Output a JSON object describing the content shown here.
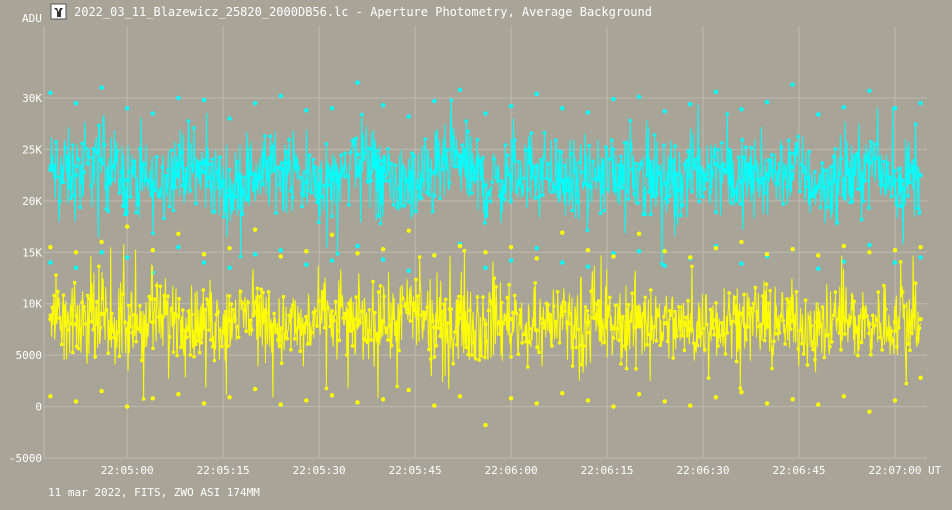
{
  "window": {
    "title": "2022_03_11_Blazewicz_25820_2000DB56.lc - Aperture Photometry, Average Background",
    "icon": "app-logo-icon"
  },
  "footer": {
    "text": "11 mar 2022, FITS, ZWO ASI 174MM"
  },
  "colors": {
    "background": "#a8a497",
    "grid": "#bdbab0",
    "text": "#ffffff",
    "series_cyan": "#00ffff",
    "series_yellow": "#ffff00"
  },
  "chart_data": {
    "type": "line",
    "title": "2022_03_11_Blazewicz_25820_2000DB56.lc - Aperture Photometry, Average Background",
    "ylabel": "ADU",
    "xlabel": "UT",
    "ylim": [
      -5000,
      37000
    ],
    "xlim": [
      "22:04:47",
      "22:07:05"
    ],
    "y_ticks": [
      {
        "value": -5000,
        "label": "-5000"
      },
      {
        "value": 0,
        "label": "0"
      },
      {
        "value": 5000,
        "label": "5000"
      },
      {
        "value": 10000,
        "label": "10K"
      },
      {
        "value": 15000,
        "label": "15K"
      },
      {
        "value": 20000,
        "label": "20K"
      },
      {
        "value": 25000,
        "label": "25K"
      },
      {
        "value": 30000,
        "label": "30K"
      }
    ],
    "x_ticks": [
      {
        "value": "22:05:00",
        "label": "22:05:00"
      },
      {
        "value": "22:05:15",
        "label": "22:05:15"
      },
      {
        "value": "22:05:30",
        "label": "22:05:30"
      },
      {
        "value": "22:05:45",
        "label": "22:05:45"
      },
      {
        "value": "22:06:00",
        "label": "22:06:00"
      },
      {
        "value": "22:06:15",
        "label": "22:06:15"
      },
      {
        "value": "22:06:30",
        "label": "22:06:30"
      },
      {
        "value": "22:06:45",
        "label": "22:06:45"
      },
      {
        "value": "22:07:00",
        "label": "22:07:00"
      }
    ],
    "grid": true,
    "legend": "none",
    "series": [
      {
        "color": "#00ffff",
        "x": [
          "22:04:48",
          "22:04:52",
          "22:04:56",
          "22:05:00",
          "22:05:04",
          "22:05:08",
          "22:05:12",
          "22:05:16",
          "22:05:20",
          "22:05:24",
          "22:05:28",
          "22:05:32",
          "22:05:36",
          "22:05:40",
          "22:05:44",
          "22:05:48",
          "22:05:52",
          "22:05:56",
          "22:06:00",
          "22:06:04",
          "22:06:08",
          "22:06:12",
          "22:06:16",
          "22:06:20",
          "22:06:24",
          "22:06:28",
          "22:06:32",
          "22:06:36",
          "22:06:40",
          "22:06:44",
          "22:06:48",
          "22:06:52",
          "22:06:56",
          "22:07:00",
          "22:07:04"
        ],
        "values": [
          23000,
          22500,
          24000,
          22000,
          21500,
          23500,
          22800,
          21000,
          22500,
          23200,
          21800,
          22000,
          24500,
          22300,
          21200,
          22700,
          23800,
          21500,
          22200,
          23400,
          22000,
          21600,
          22900,
          23100,
          21700,
          22400,
          23600,
          21900,
          22600,
          23300,
          21400,
          22100,
          23700,
          22000,
          22500
        ],
        "min": [
          14000,
          13500,
          15000,
          14500,
          13000,
          15500,
          14000,
          13500,
          14800,
          15200,
          13800,
          14200,
          15600,
          14300,
          13200,
          14700,
          15800,
          13500,
          14200,
          15400,
          14000,
          13600,
          14900,
          15100,
          13700,
          14400,
          15600,
          13900,
          14600,
          15300,
          13400,
          14100,
          15700,
          14000,
          14500
        ],
        "max": [
          30500,
          29500,
          31000,
          29000,
          28500,
          30000,
          29800,
          28000,
          29500,
          30200,
          28800,
          29000,
          31500,
          29300,
          28200,
          29700,
          30800,
          28500,
          29200,
          30400,
          29000,
          28600,
          29900,
          30100,
          28700,
          29400,
          30600,
          28900,
          29600,
          31300,
          28400,
          29100,
          30700,
          29000,
          29500
        ]
      },
      {
        "color": "#ffff00",
        "x": [
          "22:04:48",
          "22:04:52",
          "22:04:56",
          "22:05:00",
          "22:05:04",
          "22:05:08",
          "22:05:12",
          "22:05:16",
          "22:05:20",
          "22:05:24",
          "22:05:28",
          "22:05:32",
          "22:05:36",
          "22:05:40",
          "22:05:44",
          "22:05:48",
          "22:05:52",
          "22:05:56",
          "22:06:00",
          "22:06:04",
          "22:06:08",
          "22:06:12",
          "22:06:16",
          "22:06:20",
          "22:06:24",
          "22:06:28",
          "22:06:32",
          "22:06:36",
          "22:06:40",
          "22:06:44",
          "22:06:48",
          "22:06:52",
          "22:06:56",
          "22:07:00",
          "22:07:04"
        ],
        "values": [
          8500,
          8000,
          9000,
          7500,
          8200,
          8800,
          7800,
          8400,
          9200,
          7600,
          8100,
          8700,
          7900,
          8300,
          9100,
          7700,
          8600,
          8000,
          8500,
          7400,
          8900,
          8200,
          7600,
          8800,
          8100,
          7500,
          8400,
          9000,
          7800,
          8300,
          7700,
          8600,
          8000,
          8200,
          8500
        ],
        "min": [
          1000,
          500,
          1500,
          0,
          800,
          1200,
          300,
          900,
          1700,
          200,
          600,
          1100,
          400,
          700,
          1600,
          100,
          1000,
          -1800,
          800,
          300,
          1300,
          600,
          0,
          1200,
          500,
          100,
          900,
          1400,
          300,
          700,
          200,
          1000,
          -500,
          600,
          2800
        ],
        "max": [
          15500,
          15000,
          16000,
          17500,
          15200,
          16800,
          14800,
          15400,
          17200,
          14600,
          15100,
          16700,
          14900,
          15300,
          17100,
          14700,
          15600,
          15000,
          15500,
          14400,
          16900,
          15200,
          14600,
          16800,
          15100,
          14500,
          15400,
          16000,
          14800,
          15300,
          14700,
          15600,
          15000,
          15200,
          15500
        ]
      }
    ]
  }
}
